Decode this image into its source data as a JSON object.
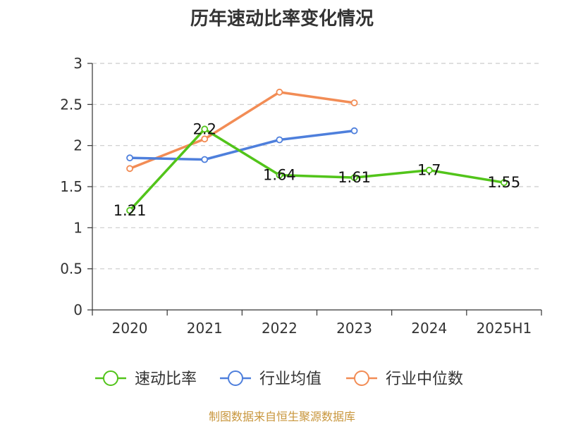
{
  "chart_data": {
    "type": "line",
    "title": "历年速动比率变化情况",
    "categories": [
      "2020",
      "2021",
      "2022",
      "2023",
      "2024",
      "2025H1"
    ],
    "ylim": [
      0,
      3
    ],
    "yticks": [
      "0",
      "0.5",
      "1",
      "1.5",
      "2",
      "2.5",
      "3"
    ],
    "grid": true,
    "legend": "bottom",
    "series": [
      {
        "name": "速动比率",
        "color": "#52c41a",
        "values": [
          1.21,
          2.2,
          1.64,
          1.61,
          1.7,
          1.55
        ],
        "labels": [
          "1.21",
          "2.2",
          "1.64",
          "1.61",
          "1.7",
          "1.55"
        ]
      },
      {
        "name": "行业均值",
        "color": "#4e7fdc",
        "values": [
          1.85,
          1.83,
          2.07,
          2.18,
          null,
          null
        ]
      },
      {
        "name": "行业中位数",
        "color": "#f28c55",
        "values": [
          1.72,
          2.08,
          2.65,
          2.52,
          null,
          null
        ]
      }
    ],
    "source": "制图数据来自恒生聚源数据库"
  }
}
